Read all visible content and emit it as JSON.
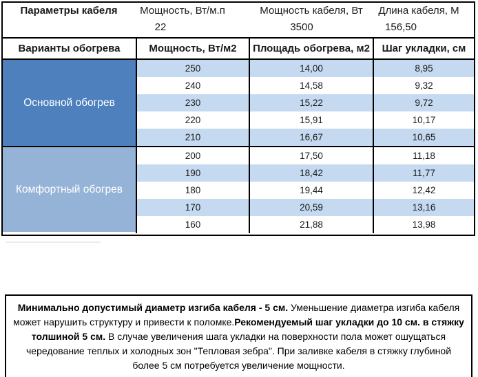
{
  "top_info": {
    "headers": [
      "Параметры кабеля",
      "Мощность, Вт/м.п",
      "Мощность кабеля, Вт",
      "Длина кабеля, М"
    ],
    "values": [
      "22",
      "3500",
      "156,50"
    ]
  },
  "main_table": {
    "headers": [
      "Варианты обогрева",
      "Мощность, Вт/м2",
      "Площадь обогрева, м2",
      "Шаг укладки, см"
    ],
    "sections": [
      {
        "label": "Основной обогрев",
        "rows": [
          [
            "250",
            "14,00",
            "8,95"
          ],
          [
            "240",
            "14,58",
            "9,32"
          ],
          [
            "230",
            "15,22",
            "9,72"
          ],
          [
            "220",
            "15,91",
            "10,17"
          ],
          [
            "210",
            "16,67",
            "10,65"
          ]
        ]
      },
      {
        "label": "Комфортный обогрев",
        "rows": [
          [
            "200",
            "17,50",
            "11,18"
          ],
          [
            "190",
            "18,42",
            "11,77"
          ],
          [
            "180",
            "19,44",
            "12,42"
          ],
          [
            "170",
            "20,59",
            "13,16"
          ],
          [
            "160",
            "21,88",
            "13,98"
          ]
        ]
      }
    ]
  },
  "note": {
    "segments": [
      {
        "text": "Минимально допустимый диаметр изгиба кабеля - 5 см.",
        "bold": true
      },
      {
        "text": "  Уменьшение диаметра изгиба кабеля может нарушить структуру и привести к поломке.",
        "bold": false
      },
      {
        "text": "Рекомендуемый шаг укладки до 10 см. в стяжку толшиной 5 см.",
        "bold": true
      },
      {
        "text": " В  случае увеличения шага укладки на поверхности пола может ошущаться чередование теплых и холодных зон \"Тепловая зебра\". При заливке кабеля в стяжку глубиной более 5 см потребуется увеличение мощности.",
        "bold": false
      }
    ]
  },
  "colors": {
    "primary-blue": "#4d80bd",
    "secondary-blue": "#95b3d7",
    "stripe-blue": "#c5d9f1",
    "border-black": "#000000"
  }
}
